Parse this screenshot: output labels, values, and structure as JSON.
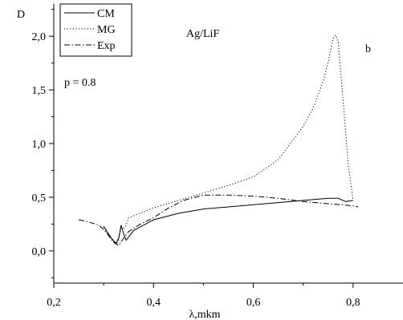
{
  "chart_data": {
    "type": "line",
    "title": "Ag/LiF",
    "panel_label": "b",
    "xlabel": "λ,mkm",
    "ylabel": "D",
    "xlim": [
      0.2,
      0.9
    ],
    "ylim": [
      -0.3,
      2.3
    ],
    "grid": false,
    "legend_position": "top-left",
    "x_ticks": [
      0.2,
      0.4,
      0.6,
      0.8
    ],
    "x_tick_labels": [
      "0,2",
      "0,4",
      "0,6",
      "0,8"
    ],
    "y_ticks": [
      0.0,
      0.5,
      1.0,
      1.5,
      2.0
    ],
    "y_tick_labels": [
      "0,0",
      "0,5",
      "1,0",
      "1,5",
      "2,0"
    ],
    "annotation": "p = 0.8",
    "series": [
      {
        "name": "CM",
        "style": "solid",
        "x": [
          0.3,
          0.315,
          0.325,
          0.33,
          0.335,
          0.34,
          0.345,
          0.36,
          0.38,
          0.4,
          0.45,
          0.5,
          0.55,
          0.6,
          0.65,
          0.7,
          0.75,
          0.77,
          0.785,
          0.8
        ],
        "y": [
          0.23,
          0.12,
          0.07,
          0.12,
          0.24,
          0.16,
          0.1,
          0.19,
          0.24,
          0.29,
          0.35,
          0.39,
          0.41,
          0.43,
          0.45,
          0.47,
          0.49,
          0.49,
          0.46,
          0.47
        ]
      },
      {
        "name": "MG",
        "style": "dotted",
        "x": [
          0.3,
          0.315,
          0.325,
          0.33,
          0.335,
          0.34,
          0.345,
          0.35,
          0.4,
          0.45,
          0.5,
          0.55,
          0.6,
          0.65,
          0.7,
          0.72,
          0.74,
          0.75,
          0.76,
          0.765,
          0.77,
          0.78,
          0.79,
          0.8
        ],
        "y": [
          0.22,
          0.11,
          0.06,
          0.1,
          0.22,
          0.2,
          0.24,
          0.31,
          0.4,
          0.47,
          0.54,
          0.61,
          0.69,
          0.85,
          1.16,
          1.33,
          1.58,
          1.76,
          1.98,
          2.01,
          1.95,
          1.4,
          0.82,
          0.47
        ]
      },
      {
        "name": "Exp",
        "style": "dashdot",
        "x": [
          0.25,
          0.27,
          0.29,
          0.3,
          0.31,
          0.32,
          0.33,
          0.34,
          0.35,
          0.37,
          0.4,
          0.43,
          0.46,
          0.5,
          0.55,
          0.6,
          0.65,
          0.7,
          0.75,
          0.8,
          0.81
        ],
        "y": [
          0.29,
          0.27,
          0.24,
          0.2,
          0.14,
          0.08,
          0.05,
          0.12,
          0.18,
          0.24,
          0.31,
          0.4,
          0.47,
          0.52,
          0.52,
          0.51,
          0.49,
          0.46,
          0.44,
          0.42,
          0.41
        ]
      }
    ]
  }
}
